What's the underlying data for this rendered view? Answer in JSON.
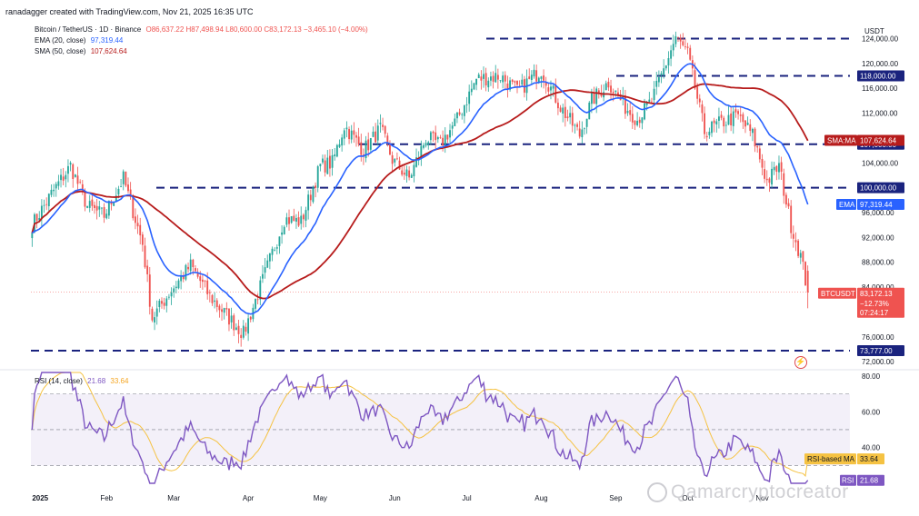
{
  "header": {
    "credit": "ranadagger created with TradingView.com, Nov 21, 2025 16:35 UTC"
  },
  "symbol_legend": {
    "name": "Bitcoin / TetherUS · 1D · Binance",
    "ohlc": "O86,637.22 H87,498.94 L80,600.00 C83,172.13 −3,465.10 (−4.00%)",
    "ema_label": "EMA (20, close)",
    "ema_value": "97,319.44",
    "sma_label": "SMA (50, close)",
    "sma_value": "107,624.64"
  },
  "rsi_legend": {
    "label": "RSI (14, close)",
    "rsi_value": "21.68",
    "ma_value": "33.64"
  },
  "colors": {
    "up": "#26a69a",
    "down": "#ef5350",
    "ema": "#2962ff",
    "sma": "#b71c1c",
    "rsi": "#7e57c2",
    "rsi_ma": "#f5c242",
    "level": "#1a237e",
    "price_badge": "#ef5350"
  },
  "chart_data": {
    "type": "candlestick",
    "currency": "USDT",
    "y_ticks": [
      "124,000.00",
      "120,000.00",
      "116,000.00",
      "112,000.00",
      "104,000.00",
      "96,000.00",
      "92,000.00",
      "88,000.00",
      "84,000.00",
      "76,000.00",
      "72,000.00"
    ],
    "x_ticks": [
      "2025",
      "Feb",
      "Mar",
      "Apr",
      "May",
      "Jun",
      "Jul",
      "Aug",
      "Sep",
      "Oct",
      "Nov"
    ],
    "ylim": [
      71000,
      127000
    ],
    "levels": [
      {
        "label": "124,000",
        "value": 124000
      },
      {
        "label": "118,000.00",
        "value": 118000
      },
      {
        "label": "107,000.00",
        "value": 107000
      },
      {
        "label": "100,000.00",
        "value": 100000
      },
      {
        "label": "73,777.00",
        "value": 73777
      }
    ],
    "price_tags": {
      "sma": {
        "name": "SMA:MA",
        "value": "107,624.64"
      },
      "ema": {
        "name": "EMA",
        "value": "97,319.44"
      },
      "last": {
        "name": "BTCUSDT",
        "value": "83,172.13",
        "change": "−12.73%",
        "countdown": "07:24:17"
      }
    },
    "price_anchors": [
      [
        0,
        94000
      ],
      [
        8,
        99000
      ],
      [
        16,
        103500
      ],
      [
        23,
        97000
      ],
      [
        30,
        95500
      ],
      [
        38,
        101500
      ],
      [
        46,
        91000
      ],
      [
        50,
        79000
      ],
      [
        57,
        83000
      ],
      [
        66,
        87500
      ],
      [
        74,
        82500
      ],
      [
        82,
        79000
      ],
      [
        88,
        76500
      ],
      [
        95,
        84000
      ],
      [
        105,
        95000
      ],
      [
        112,
        94500
      ],
      [
        120,
        103500
      ],
      [
        125,
        104000
      ],
      [
        130,
        110000
      ],
      [
        138,
        106000
      ],
      [
        145,
        109500
      ],
      [
        150,
        104500
      ],
      [
        157,
        101500
      ],
      [
        164,
        108000
      ],
      [
        170,
        107000
      ],
      [
        177,
        111000
      ],
      [
        185,
        117500
      ],
      [
        195,
        118000
      ],
      [
        202,
        115500
      ],
      [
        212,
        119000
      ],
      [
        220,
        113000
      ],
      [
        228,
        108500
      ],
      [
        233,
        114000
      ],
      [
        240,
        117000
      ],
      [
        247,
        113000
      ],
      [
        252,
        111000
      ],
      [
        258,
        114000
      ],
      [
        262,
        118000
      ],
      [
        268,
        124200
      ],
      [
        273,
        121500
      ],
      [
        280,
        109000
      ],
      [
        287,
        110500
      ],
      [
        294,
        111500
      ],
      [
        300,
        108500
      ],
      [
        306,
        101000
      ],
      [
        311,
        103500
      ],
      [
        316,
        94000
      ],
      [
        320,
        89000
      ],
      [
        323,
        83172
      ]
    ],
    "ema": {
      "name": "EMA (20, close)",
      "last": 97319.44
    },
    "sma": {
      "name": "SMA (50, close)",
      "last": 107624.64
    },
    "rsi": {
      "ylim": [
        20,
        82
      ],
      "y_ticks": [
        "80.00",
        "60.00",
        "40.00"
      ],
      "bands": [
        70,
        50,
        30
      ],
      "tags": {
        "ma": {
          "name": "RSI-based MA",
          "value": "33.64"
        },
        "rsi": {
          "name": "RSI",
          "value": "21.68"
        }
      }
    }
  },
  "watermark": "Qamarcryptocreator"
}
